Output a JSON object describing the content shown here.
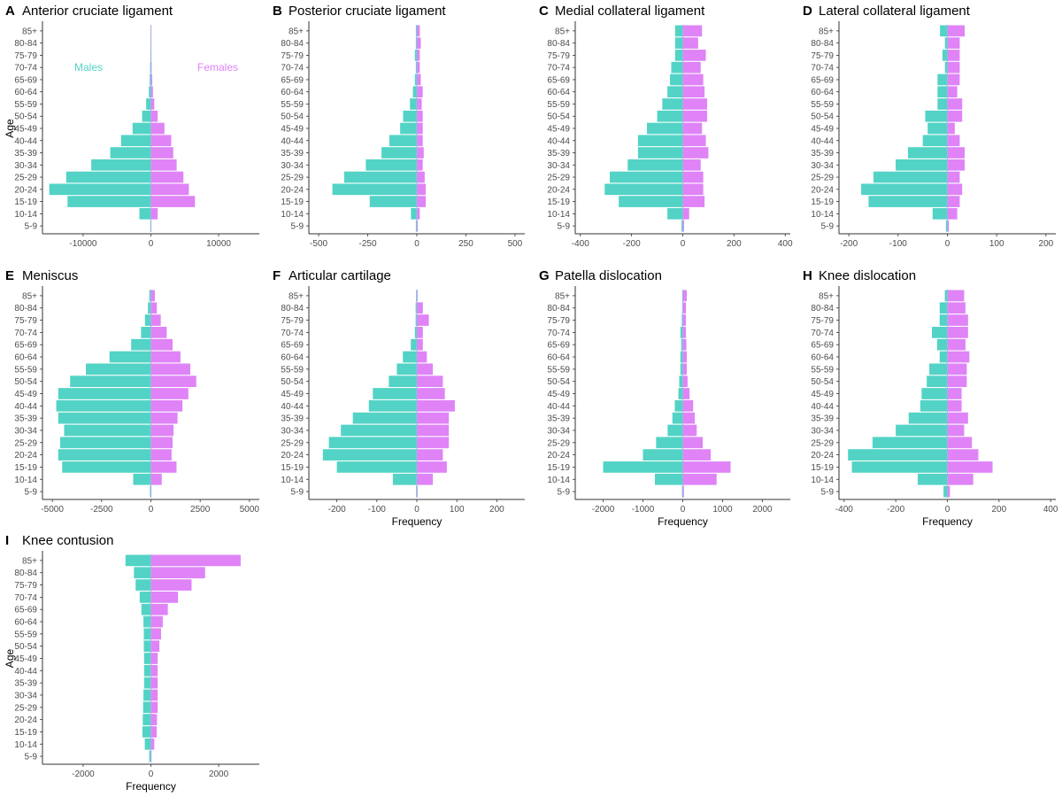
{
  "figure": {
    "colors": {
      "males": "#52d3c5",
      "females": "#df83f7",
      "axis": "#333333"
    },
    "age_axis_label": "Age",
    "frequency_axis_label": "Frequency",
    "legend": {
      "males": "Males",
      "females": "Females"
    }
  },
  "chart_data": [
    {
      "type": "bar",
      "orientation": "horizontal",
      "letter": "A",
      "title": "Anterior cruciate ligament",
      "categories": [
        "85+",
        "80-84",
        "75-79",
        "70-74",
        "65-69",
        "60-64",
        "55-59",
        "50-54",
        "45-49",
        "40-44",
        "35-39",
        "30-34",
        "25-29",
        "20-24",
        "15-19",
        "10-14",
        "5-9"
      ],
      "xlim": [
        -16000,
        16000
      ],
      "xticks": [
        -10000,
        0,
        10000
      ],
      "series": [
        {
          "name": "Males",
          "values": [
            -30,
            -60,
            -80,
            -120,
            -180,
            -300,
            -700,
            -1300,
            -2700,
            -4400,
            -6000,
            -8800,
            -12500,
            -15000,
            -12300,
            -1700,
            -100
          ]
        },
        {
          "name": "Females",
          "values": [
            40,
            60,
            80,
            120,
            200,
            300,
            500,
            1000,
            2000,
            3000,
            3300,
            3800,
            4800,
            5600,
            6500,
            1000,
            50
          ]
        }
      ],
      "show_age_label": true,
      "show_frequency_label": false,
      "show_legend": true
    },
    {
      "type": "bar",
      "orientation": "horizontal",
      "letter": "B",
      "title": "Posterior cruciate ligament",
      "categories": [
        "85+",
        "80-84",
        "75-79",
        "70-74",
        "65-69",
        "60-64",
        "55-59",
        "50-54",
        "45-49",
        "40-44",
        "35-39",
        "30-34",
        "25-29",
        "20-24",
        "15-19",
        "10-14",
        "5-9"
      ],
      "xlim": [
        -550,
        550
      ],
      "xticks": [
        -500,
        -250,
        0,
        250,
        500
      ],
      "series": [
        {
          "name": "Males",
          "values": [
            -5,
            -5,
            -10,
            -5,
            -10,
            -20,
            -35,
            -70,
            -85,
            -140,
            -180,
            -260,
            -370,
            -430,
            -240,
            -30,
            -5
          ]
        },
        {
          "name": "Females",
          "values": [
            15,
            20,
            15,
            15,
            20,
            30,
            25,
            30,
            30,
            30,
            35,
            30,
            40,
            45,
            45,
            15,
            5
          ]
        }
      ],
      "show_age_label": false,
      "show_frequency_label": false,
      "show_legend": false
    },
    {
      "type": "bar",
      "orientation": "horizontal",
      "letter": "C",
      "title": "Medial collateral ligament",
      "categories": [
        "85+",
        "80-84",
        "75-79",
        "70-74",
        "65-69",
        "60-64",
        "55-59",
        "50-54",
        "45-49",
        "40-44",
        "35-39",
        "30-34",
        "25-29",
        "20-24",
        "15-19",
        "10-14",
        "5-9"
      ],
      "xlim": [
        -420,
        420
      ],
      "xticks": [
        -400,
        -200,
        0,
        200,
        400
      ],
      "series": [
        {
          "name": "Males",
          "values": [
            -30,
            -30,
            -30,
            -45,
            -50,
            -60,
            -80,
            -100,
            -140,
            -175,
            -175,
            -215,
            -285,
            -305,
            -250,
            -60,
            -5
          ]
        },
        {
          "name": "Females",
          "values": [
            75,
            60,
            90,
            70,
            80,
            85,
            95,
            95,
            75,
            90,
            100,
            70,
            80,
            80,
            85,
            25,
            5
          ]
        }
      ],
      "show_age_label": false,
      "show_frequency_label": false,
      "show_legend": false
    },
    {
      "type": "bar",
      "orientation": "horizontal",
      "letter": "D",
      "title": "Lateral collateral ligament",
      "categories": [
        "85+",
        "80-84",
        "75-79",
        "70-74",
        "65-69",
        "60-64",
        "55-59",
        "50-54",
        "45-49",
        "40-44",
        "35-39",
        "30-34",
        "25-29",
        "20-24",
        "15-19",
        "10-14",
        "5-9"
      ],
      "xlim": [
        -220,
        220
      ],
      "xticks": [
        -200,
        -100,
        0,
        100,
        200
      ],
      "series": [
        {
          "name": "Males",
          "values": [
            -15,
            -5,
            -10,
            -5,
            -20,
            -20,
            -20,
            -45,
            -40,
            -50,
            -80,
            -105,
            -150,
            -175,
            -160,
            -30,
            -3
          ]
        },
        {
          "name": "Females",
          "values": [
            35,
            25,
            25,
            25,
            25,
            20,
            30,
            30,
            15,
            25,
            35,
            35,
            25,
            30,
            25,
            20,
            3
          ]
        }
      ],
      "show_age_label": false,
      "show_frequency_label": false,
      "show_legend": false
    },
    {
      "type": "bar",
      "orientation": "horizontal",
      "letter": "E",
      "title": "Meniscus",
      "categories": [
        "85+",
        "80-84",
        "75-79",
        "70-74",
        "65-69",
        "60-64",
        "55-59",
        "50-54",
        "45-49",
        "40-44",
        "35-39",
        "30-34",
        "25-29",
        "20-24",
        "15-19",
        "10-14",
        "5-9"
      ],
      "xlim": [
        -5500,
        5500
      ],
      "xticks": [
        -5000,
        -2500,
        0,
        2500,
        5000
      ],
      "series": [
        {
          "name": "Males",
          "values": [
            -80,
            -150,
            -300,
            -500,
            -1000,
            -2100,
            -3300,
            -4100,
            -4700,
            -4800,
            -4700,
            -4400,
            -4600,
            -4700,
            -4500,
            -900,
            -50
          ]
        },
        {
          "name": "Females",
          "values": [
            200,
            300,
            500,
            800,
            1100,
            1500,
            2000,
            2300,
            1900,
            1600,
            1350,
            1150,
            1100,
            1050,
            1300,
            550,
            30
          ]
        }
      ],
      "show_age_label": false,
      "show_frequency_label": false,
      "show_legend": false
    },
    {
      "type": "bar",
      "orientation": "horizontal",
      "letter": "F",
      "title": "Articular cartilage",
      "categories": [
        "85+",
        "80-84",
        "75-79",
        "70-74",
        "65-69",
        "60-64",
        "55-59",
        "50-54",
        "45-49",
        "40-44",
        "35-39",
        "30-34",
        "25-29",
        "20-24",
        "15-19",
        "10-14",
        "5-9"
      ],
      "xlim": [
        -270,
        270
      ],
      "xticks": [
        -200,
        -100,
        0,
        100,
        200
      ],
      "series": [
        {
          "name": "Males",
          "values": [
            -2,
            -3,
            -3,
            -5,
            -15,
            -35,
            -50,
            -70,
            -110,
            -120,
            -160,
            -190,
            -220,
            -235,
            -200,
            -60,
            -2
          ]
        },
        {
          "name": "Females",
          "values": [
            2,
            15,
            30,
            15,
            15,
            25,
            40,
            65,
            70,
            95,
            80,
            80,
            80,
            65,
            75,
            40,
            2
          ]
        }
      ],
      "show_age_label": false,
      "show_frequency_label": true,
      "show_legend": false
    },
    {
      "type": "bar",
      "orientation": "horizontal",
      "letter": "G",
      "title": "Patella dislocation",
      "categories": [
        "85+",
        "80-84",
        "75-79",
        "70-74",
        "65-69",
        "60-64",
        "55-59",
        "50-54",
        "45-49",
        "40-44",
        "35-39",
        "30-34",
        "25-29",
        "20-24",
        "15-19",
        "10-14",
        "5-9"
      ],
      "xlim": [
        -2700,
        2700
      ],
      "xticks": [
        -2000,
        -1000,
        0,
        1000,
        2000
      ],
      "series": [
        {
          "name": "Males",
          "values": [
            -15,
            -15,
            -25,
            -60,
            -40,
            -60,
            -60,
            -90,
            -110,
            -200,
            -260,
            -380,
            -670,
            -1000,
            -2000,
            -700,
            -20
          ]
        },
        {
          "name": "Females",
          "values": [
            100,
            80,
            80,
            80,
            90,
            100,
            100,
            120,
            170,
            260,
            300,
            350,
            500,
            700,
            1200,
            850,
            30
          ]
        }
      ],
      "show_age_label": false,
      "show_frequency_label": true,
      "show_legend": false
    },
    {
      "type": "bar",
      "orientation": "horizontal",
      "letter": "H",
      "title": "Knee dislocation",
      "categories": [
        "85+",
        "80-84",
        "75-79",
        "70-74",
        "65-69",
        "60-64",
        "55-59",
        "50-54",
        "45-49",
        "40-44",
        "35-39",
        "30-34",
        "25-29",
        "20-24",
        "15-19",
        "10-14",
        "5-9"
      ],
      "xlim": [
        -420,
        420
      ],
      "xticks": [
        -400,
        -200,
        0,
        200,
        400
      ],
      "series": [
        {
          "name": "Males",
          "values": [
            -10,
            -30,
            -30,
            -60,
            -40,
            -30,
            -70,
            -80,
            -100,
            -105,
            -150,
            -200,
            -290,
            -385,
            -370,
            -115,
            -15
          ]
        },
        {
          "name": "Females",
          "values": [
            65,
            70,
            80,
            80,
            70,
            85,
            75,
            75,
            55,
            55,
            80,
            65,
            95,
            120,
            175,
            100,
            10
          ]
        }
      ],
      "show_age_label": false,
      "show_frequency_label": true,
      "show_legend": false
    },
    {
      "type": "bar",
      "orientation": "horizontal",
      "letter": "I",
      "title": "Knee contusion",
      "categories": [
        "85+",
        "80-84",
        "75-79",
        "70-74",
        "65-69",
        "60-64",
        "55-59",
        "50-54",
        "45-49",
        "40-44",
        "35-39",
        "30-34",
        "25-29",
        "20-24",
        "15-19",
        "10-14",
        "5-9"
      ],
      "xlim": [
        -3200,
        3200
      ],
      "xticks": [
        -2000,
        0,
        2000
      ],
      "series": [
        {
          "name": "Males",
          "values": [
            -750,
            -500,
            -450,
            -330,
            -280,
            -220,
            -210,
            -210,
            -200,
            -200,
            -200,
            -220,
            -230,
            -240,
            -250,
            -180,
            -50
          ]
        },
        {
          "name": "Females",
          "values": [
            2650,
            1600,
            1200,
            800,
            500,
            350,
            300,
            250,
            200,
            200,
            200,
            200,
            200,
            180,
            170,
            100,
            20
          ]
        }
      ],
      "show_age_label": true,
      "show_frequency_label": true,
      "show_legend": false
    }
  ]
}
